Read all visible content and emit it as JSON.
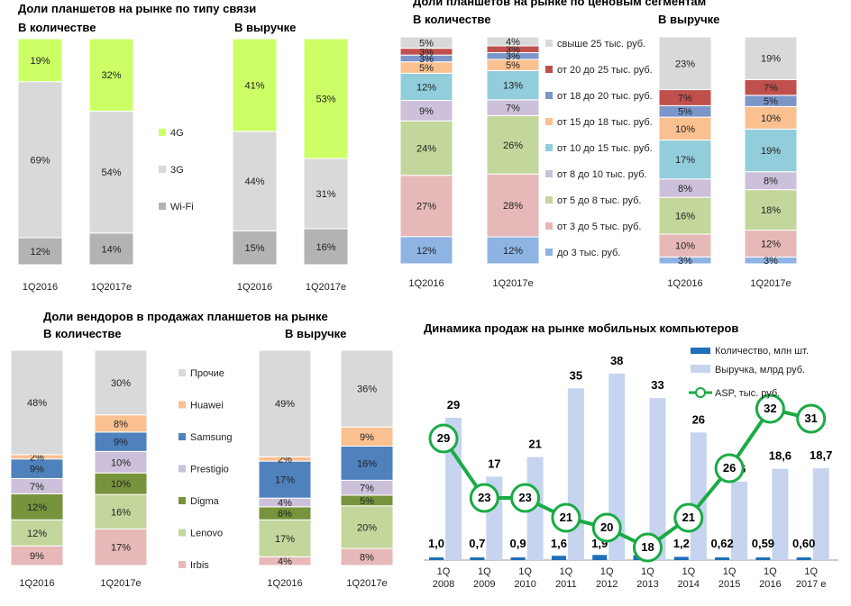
{
  "colors": {
    "4G": "#ccff66",
    "3G": "#d9d9d9",
    "Wi-Fi": "#b3b3b3",
    "s25": "#d9d9d9",
    "s20": "#c0504d",
    "s18": "#7b96c8",
    "s15": "#fac090",
    "s10": "#92cddc",
    "s8": "#ccc0da",
    "s5": "#c3d69b",
    "s3": "#e6b9b8",
    "s0": "#8eb4e3",
    "Prochie": "#d9d9d9",
    "Huawei": "#fac090",
    "Samsung": "#4f81bd",
    "Prestigio": "#ccc0da",
    "Digma": "#77933c",
    "Lenovo": "#c3d69b",
    "Irbis": "#e6b9b8",
    "qty": "#1f6fba",
    "rev": "#c6d4f0",
    "asp": "#1aab44"
  },
  "chart_data": [
    {
      "type": "bar",
      "title": "Доли планшетов на рынке по типу связи",
      "subtitles": [
        "В количестве",
        "В выручке"
      ],
      "categories": [
        "1Q2016",
        "1Q2017e",
        "1Q2016",
        "1Q2017e"
      ],
      "legend": [
        "4G",
        "3G",
        "Wi-Fi"
      ],
      "series": [
        {
          "name": "Wi-Fi",
          "key": "Wi-Fi",
          "values": [
            12,
            14,
            15,
            16
          ],
          "labels": [
            "12%",
            "14%",
            "15%",
            "16%"
          ]
        },
        {
          "name": "3G",
          "key": "3G",
          "values": [
            69,
            54,
            44,
            31
          ],
          "labels": [
            "69%",
            "54%",
            "44%",
            "31%"
          ]
        },
        {
          "name": "4G",
          "key": "4G",
          "values": [
            19,
            32,
            41,
            53
          ],
          "labels": [
            "19%",
            "32%",
            "41%",
            "53%"
          ]
        }
      ]
    },
    {
      "type": "bar",
      "title": "Доли планшетов на рынке по ценовым сегментам",
      "subtitles": [
        "В количестве",
        "В выручке"
      ],
      "categories": [
        "1Q2016",
        "1Q2017e",
        "1Q2016",
        "1Q2017e"
      ],
      "legend": [
        "свыше 25 тыс. руб.",
        "от 20 до 25 тыс. руб.",
        "от 18 до 20 тыс. руб.",
        "от 15 до 18 тыс. руб.",
        "от 10 до 15 тыс. руб.",
        "от 8 до 10 тыс. руб.",
        "от 5 до 8 тыс. руб.",
        "от 3 до 5 тыс. руб.",
        "до 3 тыс. руб."
      ],
      "series": [
        {
          "name": "до 3 тыс. руб.",
          "key": "s0",
          "values": [
            12,
            12,
            3,
            3
          ],
          "labels": [
            "12%",
            "12%",
            "3%",
            "3%"
          ]
        },
        {
          "name": "от 3 до 5 тыс. руб.",
          "key": "s3",
          "values": [
            27,
            28,
            10,
            12
          ],
          "labels": [
            "27%",
            "28%",
            "10%",
            "12%"
          ]
        },
        {
          "name": "от 5 до 8 тыс. руб.",
          "key": "s5",
          "values": [
            24,
            26,
            16,
            18
          ],
          "labels": [
            "24%",
            "26%",
            "16%",
            "18%"
          ]
        },
        {
          "name": "от 8 до 10 тыс. руб.",
          "key": "s8",
          "values": [
            9,
            7,
            8,
            8
          ],
          "labels": [
            "9%",
            "7%",
            "8%",
            "8%"
          ]
        },
        {
          "name": "от 10 до 15 тыс. руб.",
          "key": "s10",
          "values": [
            12,
            13,
            17,
            19
          ],
          "labels": [
            "12%",
            "13%",
            "17%",
            "19%"
          ]
        },
        {
          "name": "от 15 до 18 тыс. руб.",
          "key": "s15",
          "values": [
            5,
            5,
            10,
            10
          ],
          "labels": [
            "5%",
            "5%",
            "10%",
            "10%"
          ]
        },
        {
          "name": "от 18 до 20 тыс. руб.",
          "key": "s18",
          "values": [
            3,
            3,
            5,
            5
          ],
          "labels": [
            "3%",
            "3%",
            "5%",
            "5%"
          ]
        },
        {
          "name": "от 20 до 25 тыс. руб.",
          "key": "s20",
          "values": [
            3,
            3,
            7,
            7
          ],
          "labels": [
            "3%",
            "3%",
            "7%",
            "7%"
          ]
        },
        {
          "name": "свыше 25 тыс. руб.",
          "key": "s25",
          "values": [
            5,
            4,
            23,
            19
          ],
          "labels": [
            "5%",
            "4%",
            "23%",
            "19%"
          ]
        }
      ]
    },
    {
      "type": "bar",
      "title": "Доли вендоров в продажах планшетов на рынке",
      "subtitles": [
        "В количестве",
        "В выручке"
      ],
      "categories": [
        "1Q2016",
        "1Q2017e",
        "1Q2016",
        "1Q2017e"
      ],
      "legend": [
        "Прочие",
        "Huawei",
        "Samsung",
        "Prestigio",
        "Digma",
        "Lenovo",
        "Irbis"
      ],
      "series": [
        {
          "name": "Irbis",
          "key": "Irbis",
          "values": [
            9,
            17,
            4,
            8
          ],
          "labels": [
            "9%",
            "17%",
            "4%",
            "8%"
          ]
        },
        {
          "name": "Lenovo",
          "key": "Lenovo",
          "values": [
            12,
            16,
            17,
            20
          ],
          "labels": [
            "12%",
            "16%",
            "17%",
            "20%"
          ]
        },
        {
          "name": "Digma",
          "key": "Digma",
          "values": [
            12,
            10,
            6,
            5
          ],
          "labels": [
            "12%",
            "10%",
            "6%",
            "5%"
          ]
        },
        {
          "name": "Prestigio",
          "key": "Prestigio",
          "values": [
            7,
            10,
            4,
            7
          ],
          "labels": [
            "7%",
            "10%",
            "4%",
            "7%"
          ]
        },
        {
          "name": "Samsung",
          "key": "Samsung",
          "values": [
            9,
            9,
            17,
            16
          ],
          "labels": [
            "9%",
            "9%",
            "17%",
            "16%"
          ]
        },
        {
          "name": "Huawei",
          "key": "Huawei",
          "values": [
            2,
            8,
            2,
            9
          ],
          "labels": [
            "2%",
            "8%",
            "2%",
            "9%"
          ]
        },
        {
          "name": "Прочие",
          "key": "Prochie",
          "values": [
            48,
            30,
            49,
            36
          ],
          "labels": [
            "48%",
            "30%",
            "49%",
            "36%"
          ]
        }
      ]
    },
    {
      "type": "bar",
      "title": "Динамика продаж на рынке мобильных компьютеров",
      "categories": [
        [
          "1Q",
          "2008"
        ],
        [
          "1Q",
          "2009"
        ],
        [
          "1Q",
          "2010"
        ],
        [
          "1Q",
          "2011"
        ],
        [
          "1Q",
          "2012"
        ],
        [
          "1Q",
          "2013"
        ],
        [
          "1Q",
          "2014"
        ],
        [
          "1Q",
          "2015"
        ],
        [
          "1Q",
          "2016"
        ],
        [
          "1Q",
          "2017 e"
        ]
      ],
      "legend": [
        "Количество, млн шт.",
        "Выручка, млрд руб.",
        "ASP, тыс. руб."
      ],
      "series": [
        {
          "name": "Количество, млн шт.",
          "values": [
            1.0,
            0.7,
            0.9,
            1.6,
            1.9,
            1.8,
            1.2,
            0.62,
            0.59,
            0.6
          ],
          "labels": [
            "1,0",
            "0,7",
            "0,9",
            "1,6",
            "1,9",
            "1,8",
            "1,2",
            "0,62",
            "0,59",
            "0,60"
          ]
        },
        {
          "name": "Выручка, млрд руб.",
          "values": [
            29,
            17,
            21,
            35,
            38,
            33,
            26,
            16,
            18.6,
            18.7
          ],
          "labels": [
            "29",
            "17",
            "21",
            "35",
            "38",
            "33",
            "26",
            "16",
            "18,6",
            "18,7"
          ]
        },
        {
          "name": "ASP, тыс. руб.",
          "values": [
            29,
            23,
            23,
            21,
            20,
            18,
            21,
            26,
            32,
            31
          ],
          "labels": [
            "29",
            "23",
            "23",
            "21",
            "20",
            "18",
            "21",
            "26",
            "32",
            "31"
          ]
        }
      ],
      "ylim": [
        0,
        42
      ]
    }
  ]
}
